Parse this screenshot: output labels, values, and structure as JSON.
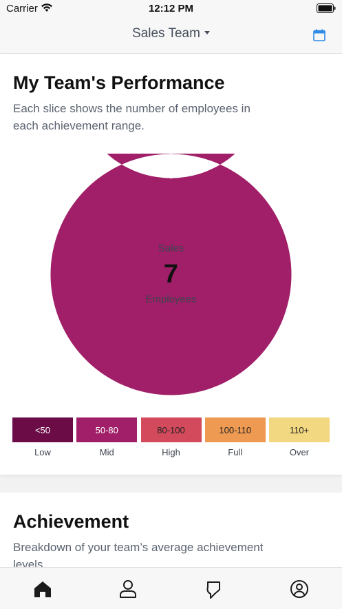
{
  "status": {
    "carrier": "Carrier",
    "time": "12:12 PM"
  },
  "nav": {
    "title": "Sales Team"
  },
  "performance": {
    "title": "My Team's Performance",
    "description": "Each slice shows the number of employees in each achievement range.",
    "center_label": "Sales",
    "center_count": "7",
    "center_sub": "Employees"
  },
  "legend": [
    {
      "range": "<50",
      "label": "Low",
      "color": "#6b0c46",
      "text_color": "#ffffff"
    },
    {
      "range": "50-80",
      "label": "Mid",
      "color": "#a01f68",
      "text_color": "#ffffff"
    },
    {
      "range": "80-100",
      "label": "High",
      "color": "#d24a5c",
      "text_color": "#222222"
    },
    {
      "range": "100-110",
      "label": "Full",
      "color": "#ef9a52",
      "text_color": "#222222"
    },
    {
      "range": "110+",
      "label": "Over",
      "color": "#f3d882",
      "text_color": "#222222"
    }
  ],
  "chart_data": {
    "type": "pie",
    "categories": [
      "<50",
      "50-80",
      "80-100",
      "100-110",
      "110+"
    ],
    "values": [
      0,
      7,
      0,
      0,
      0
    ],
    "colors": [
      "#6b0c46",
      "#a01f68",
      "#d24a5c",
      "#ef9a52",
      "#f3d882"
    ]
  },
  "achievement": {
    "title": "Achievement",
    "description": "Breakdown of your team’s average achievement levels."
  },
  "tabs": [
    {
      "icon": "home-icon",
      "active": true
    },
    {
      "icon": "person-icon",
      "active": false
    },
    {
      "icon": "ribbon-icon",
      "active": false
    },
    {
      "icon": "account-circle-icon",
      "active": false
    }
  ],
  "accent_color": "#2e8ce6"
}
